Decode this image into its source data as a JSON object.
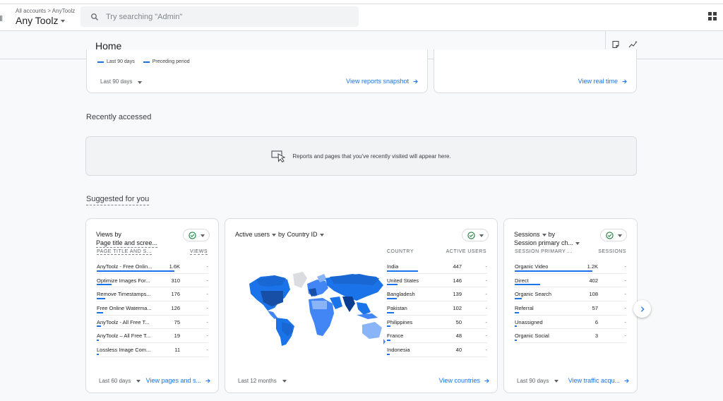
{
  "topbar": {
    "breadcrumb": "All accounts > AnyToolz",
    "account_name": "Any Toolz",
    "search_placeholder": "Try searching \"Admin\""
  },
  "header": {
    "title": "Home"
  },
  "top_cards": {
    "left": {
      "legend_current": "Last 90 days",
      "legend_previous": "Preceding period",
      "range": "Last 90 days",
      "link": "View reports snapshot"
    },
    "right": {
      "link": "View real time"
    }
  },
  "recent": {
    "title": "Recently accessed",
    "empty_message": "Reports and pages that you've recently visited will appear here."
  },
  "suggested": {
    "title": "Suggested for you",
    "views_card": {
      "title_line1": "Views by",
      "title_line2": "Page title and scree...",
      "col1": "PAGE TITLE AND S...",
      "col2": "VIEWS",
      "rows": [
        {
          "name": "AnyToolz - Free Onlin...",
          "value": "1.6K",
          "share": 1.0
        },
        {
          "name": "Optimize Images For...",
          "value": "310",
          "share": 0.19
        },
        {
          "name": "Remove Timestamps...",
          "value": "176",
          "share": 0.11
        },
        {
          "name": "Free Online Waterma...",
          "value": "126",
          "share": 0.08
        },
        {
          "name": "AnyToolz - All Free T...",
          "value": "75",
          "share": 0.05
        },
        {
          "name": "AnyToolz – All Free T...",
          "value": "19",
          "share": 0.02
        },
        {
          "name": "Lossless Image Com...",
          "value": "11",
          "share": 0.01
        }
      ],
      "range": "Last 60 days",
      "link": "View pages and s..."
    },
    "country_card": {
      "title_metric": "Active users",
      "title_by": "by",
      "title_dim": "Country ID",
      "col1": "COUNTRY",
      "col2": "ACTIVE USERS",
      "rows": [
        {
          "name": "India",
          "value": "447",
          "share": 1.0
        },
        {
          "name": "United States",
          "value": "146",
          "share": 0.33
        },
        {
          "name": "Bangladesh",
          "value": "139",
          "share": 0.31
        },
        {
          "name": "Pakistan",
          "value": "102",
          "share": 0.23
        },
        {
          "name": "Philippines",
          "value": "50",
          "share": 0.11
        },
        {
          "name": "France",
          "value": "48",
          "share": 0.11
        },
        {
          "name": "Indonesia",
          "value": "40",
          "share": 0.09
        }
      ],
      "range": "Last 12 months",
      "link": "View countries"
    },
    "sessions_card": {
      "title_metric": "Sessions",
      "title_by": "by",
      "title_dim": "Session primary ch...",
      "col1": "SESSION PRIMARY ...",
      "col2": "SESSIONS",
      "rows": [
        {
          "name": "Organic Video",
          "value": "1.2K",
          "share": 1.0
        },
        {
          "name": "Direct",
          "value": "402",
          "share": 0.33
        },
        {
          "name": "Organic Search",
          "value": "108",
          "share": 0.09
        },
        {
          "name": "Referral",
          "value": "57",
          "share": 0.05
        },
        {
          "name": "Unassigned",
          "value": "6",
          "share": 0.01
        },
        {
          "name": "Organic Social",
          "value": "3",
          "share": 0.01
        }
      ],
      "range": "Last 90 days",
      "link": "View traffic acqu..."
    }
  },
  "colors": {
    "accent": "#1a73e8",
    "check": "#188038"
  }
}
